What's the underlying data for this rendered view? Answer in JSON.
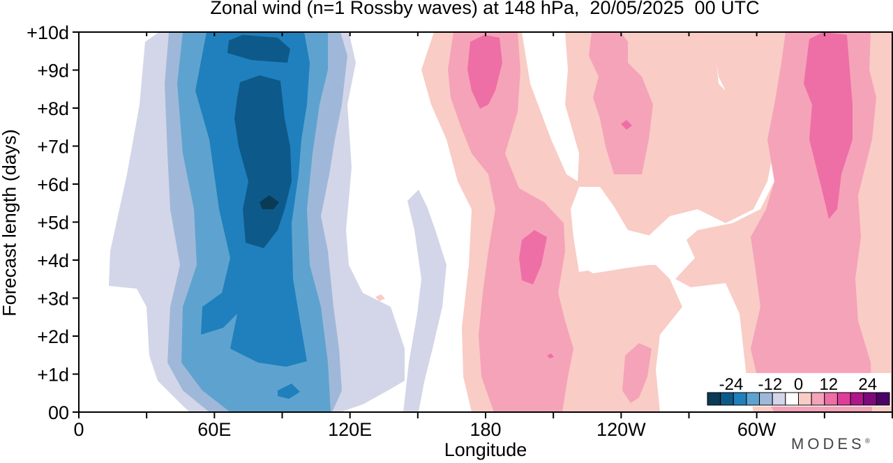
{
  "chart_data": {
    "type": "heatmap",
    "title": "Zonal wind (n=1 Rossby waves) at 148 hPa,  20/05/2025  00 UTC",
    "xlabel": "Longitude",
    "ylabel": "Forecast length (days)",
    "x_ticks": [
      "0",
      "60E",
      "120E",
      "180",
      "120W",
      "60W"
    ],
    "x_tick_values_deg_east": [
      0,
      60,
      120,
      180,
      240,
      300
    ],
    "y_ticks": [
      "00",
      "+1d",
      "+2d",
      "+3d",
      "+4d",
      "+5d",
      "+6d",
      "+7d",
      "+8d",
      "+9d",
      "+10d"
    ],
    "xlim": [
      0,
      360
    ],
    "ylim": [
      0,
      10
    ],
    "colorbar": {
      "tick_labels": [
        "-24",
        "-12",
        "0",
        "12",
        "24"
      ],
      "tick_values": [
        -24,
        -12,
        0,
        12,
        24
      ],
      "levels": [
        -28,
        -24,
        -20,
        -16,
        -12,
        -8,
        -4,
        4,
        8,
        12,
        16,
        20,
        24,
        28
      ],
      "colors": [
        "#0a3a55",
        "#0d5a8a",
        "#2080bd",
        "#5ea3cf",
        "#9fb8d9",
        "#d3d6e8",
        "#ffffff",
        "#f9ccc6",
        "#f5a3b9",
        "#ee6fa5",
        "#df3d9a",
        "#b01589",
        "#7d0a7c",
        "#4c0366"
      ]
    },
    "regions": [
      {
        "value": -4,
        "color": "#d3d6e8",
        "lon": [
          34,
          124
        ],
        "days": [
          0,
          10
        ]
      },
      {
        "value": -8,
        "color": "#9fb8d9",
        "lon": [
          40,
          118
        ],
        "days": [
          0,
          10
        ]
      },
      {
        "value": -12,
        "color": "#5ea3cf",
        "lon": [
          46,
          112
        ],
        "days": [
          0,
          10
        ]
      },
      {
        "value": -16,
        "color": "#2080bd",
        "lon": [
          56,
          104
        ],
        "days": [
          0.8,
          10
        ]
      },
      {
        "value": -20,
        "color": "#0d5a8a",
        "lon": [
          70,
          96
        ],
        "days": [
          4.2,
          9.9
        ]
      },
      {
        "value": -24,
        "color": "#0a3a55",
        "lon": [
          82,
          88
        ],
        "days": [
          5.4,
          5.6
        ]
      },
      {
        "value": 4,
        "color": "#f9ccc6",
        "lon": [
          154,
          360
        ],
        "days": [
          0,
          10
        ]
      },
      {
        "value": 8,
        "color": "#f5a3b9",
        "lon": [
          170,
          222
        ],
        "days": [
          0,
          10
        ]
      },
      {
        "value": 12,
        "color": "#ee6fa5",
        "lon": [
          178,
          192
        ],
        "days": [
          7.9,
          9.9
        ]
      },
      {
        "value": 12,
        "color": "#ee6fa5",
        "lon": [
          194,
          204
        ],
        "days": [
          3.4,
          4.7
        ]
      },
      {
        "value": 8,
        "color": "#f5a3b9",
        "lon": [
          232,
          254
        ],
        "days": [
          6.2,
          10
        ]
      },
      {
        "value": 8,
        "color": "#f5a3b9",
        "lon": [
          302,
          350
        ],
        "days": [
          0,
          10
        ]
      },
      {
        "value": 12,
        "color": "#ee6fa5",
        "lon": [
          318,
          340
        ],
        "days": [
          5.1,
          10
        ]
      }
    ]
  },
  "brand": {
    "name": "MODES",
    "mark": "®"
  }
}
